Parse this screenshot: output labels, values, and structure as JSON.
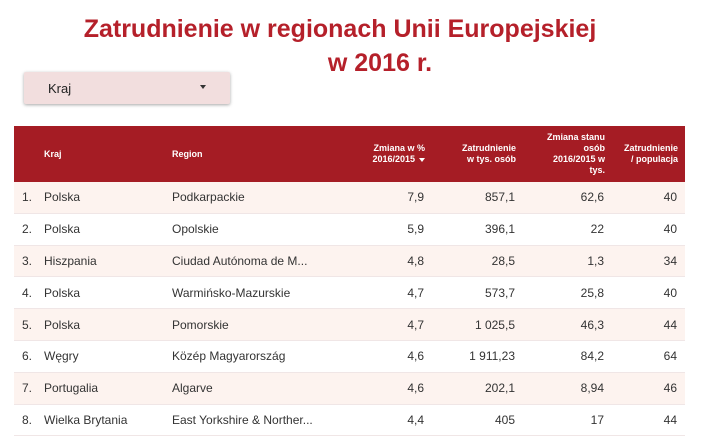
{
  "title": {
    "line1": "Zatrudnienie w regionach Unii Europejskiej",
    "line2": "w 2016 r."
  },
  "filter": {
    "label": "Kraj"
  },
  "table": {
    "headers": {
      "kraj": "Kraj",
      "region": "Region",
      "zmiana_proc": "Zmiana w %\n2016/2015",
      "zatrudnienie": "Zatrudnienie\nw tys. osób",
      "zmiana_stanu": "Zmiana stanu\nosób\n2016/2015 w\ntys.",
      "zatr_pop": "Zatrudnienie\n/ populacja"
    },
    "rows": [
      {
        "idx": "1.",
        "kraj": "Polska",
        "region": "Podkarpackie",
        "zmiana_proc": "7,9",
        "zatrudnienie": "857,1",
        "zmiana_stanu": "62,6",
        "zatr_pop": "40"
      },
      {
        "idx": "2.",
        "kraj": "Polska",
        "region": "Opolskie",
        "zmiana_proc": "5,9",
        "zatrudnienie": "396,1",
        "zmiana_stanu": "22",
        "zatr_pop": "40"
      },
      {
        "idx": "3.",
        "kraj": "Hiszpania",
        "region": "Ciudad Autónoma de M...",
        "zmiana_proc": "4,8",
        "zatrudnienie": "28,5",
        "zmiana_stanu": "1,3",
        "zatr_pop": "34"
      },
      {
        "idx": "4.",
        "kraj": "Polska",
        "region": "Warmińsko-Mazurskie",
        "zmiana_proc": "4,7",
        "zatrudnienie": "573,7",
        "zmiana_stanu": "25,8",
        "zatr_pop": "40"
      },
      {
        "idx": "5.",
        "kraj": "Polska",
        "region": "Pomorskie",
        "zmiana_proc": "4,7",
        "zatrudnienie": "1 025,5",
        "zmiana_stanu": "46,3",
        "zatr_pop": "44"
      },
      {
        "idx": "6.",
        "kraj": "Węgry",
        "region": "Közép Magyarország",
        "zmiana_proc": "4,6",
        "zatrudnienie": "1 911,23",
        "zmiana_stanu": "84,2",
        "zatr_pop": "64"
      },
      {
        "idx": "7.",
        "kraj": "Portugalia",
        "region": "Algarve",
        "zmiana_proc": "4,6",
        "zatrudnienie": "202,1",
        "zmiana_stanu": "8,94",
        "zatr_pop": "46"
      },
      {
        "idx": "8.",
        "kraj": "Wielka Brytania",
        "region": "East Yorkshire & Norther...",
        "zmiana_proc": "4,4",
        "zatrudnienie": "405",
        "zmiana_stanu": "17",
        "zatr_pop": "44"
      }
    ]
  }
}
